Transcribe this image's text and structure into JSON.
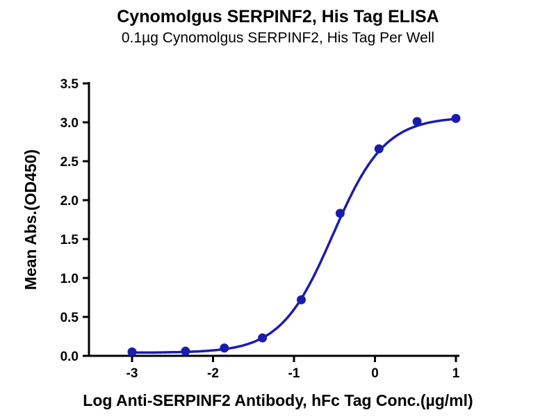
{
  "chart_data": {
    "type": "scatter",
    "title": "Cynomolgus SERPINF2, His Tag ELISA",
    "subtitle": "0.1µg Cynomolgus SERPINF2, His Tag Per Well",
    "xlabel": "Log Anti-SERPINF2 Antibody, hFc Tag Conc.(µg/ml)",
    "ylabel": "Mean Abs.(OD450)",
    "xlim": [
      -3.5,
      1.05
    ],
    "ylim": [
      0,
      3.5
    ],
    "xticks": [
      -3,
      -2,
      -1,
      0,
      1
    ],
    "xtick_labels": [
      "-3",
      "-2",
      "-1",
      "0",
      "1"
    ],
    "yticks": [
      0,
      0.5,
      1,
      1.5,
      2,
      2.5,
      3,
      3.5
    ],
    "ytick_labels": [
      "0.0",
      "0.5",
      "1.0",
      "1.5",
      "2.0",
      "2.5",
      "3.0",
      "3.5"
    ],
    "series": [
      {
        "name": "Anti-SERPINF2 Antibody, hFc Tag",
        "x": [
          -3.0,
          -2.34,
          -1.86,
          -1.39,
          -0.91,
          -0.43,
          0.05,
          0.52,
          1.0
        ],
        "y": [
          0.05,
          0.06,
          0.1,
          0.23,
          0.72,
          1.83,
          2.66,
          3.01,
          3.05
        ]
      }
    ],
    "fit": {
      "model": "4PL",
      "bottom": 0.04,
      "top": 3.07,
      "logEC50": -0.52,
      "hillslope": 1.35
    },
    "curve_color": "#1b1bad",
    "axis_color": "#000000",
    "grid": false,
    "legend": false
  }
}
